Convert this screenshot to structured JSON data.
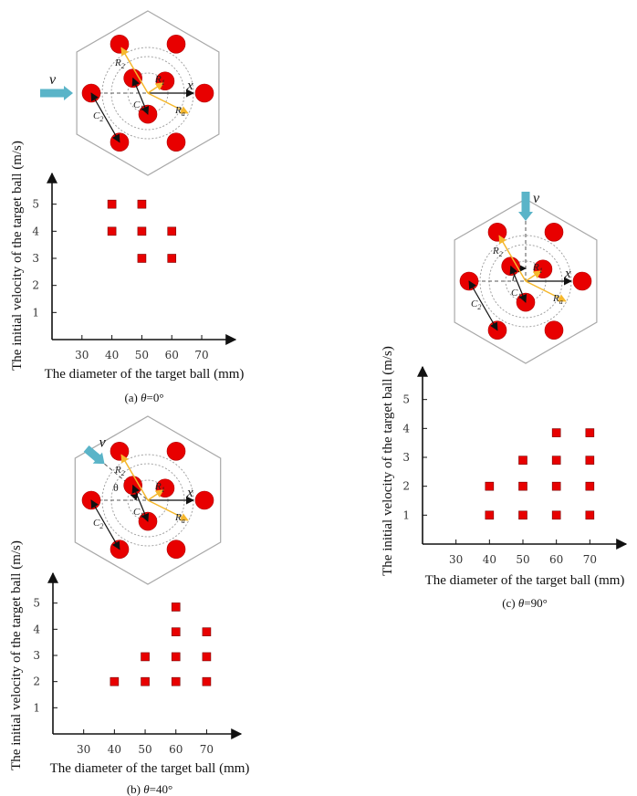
{
  "chart_data": [
    {
      "id": "a",
      "type": "scatter",
      "title": "",
      "caption_prefix": "(a)",
      "caption_theta": "θ=0°",
      "xlabel": "The diameter of the target ball (mm)",
      "ylabel": "The initial velocity of the target ball (m/s)",
      "x_ticks": [
        30,
        40,
        50,
        60,
        70
      ],
      "y_ticks": [
        1,
        2,
        3,
        4,
        5
      ],
      "xlim": [
        20,
        77
      ],
      "ylim": [
        0,
        6
      ],
      "grid": false,
      "marker": "square",
      "marker_color": "#e80000",
      "points": [
        {
          "x": 40,
          "y": 5
        },
        {
          "x": 50,
          "y": 5
        },
        {
          "x": 40,
          "y": 4
        },
        {
          "x": 50,
          "y": 4
        },
        {
          "x": 60,
          "y": 4
        },
        {
          "x": 50,
          "y": 3
        },
        {
          "x": 60,
          "y": 3
        }
      ],
      "diagram": {
        "velocity_label": "v",
        "x_axis_label": "x",
        "labels": [
          "R2",
          "R1",
          "Ra",
          "C1",
          "C2"
        ],
        "theta_label": "",
        "impact_angle_deg": 0
      }
    },
    {
      "id": "b",
      "type": "scatter",
      "title": "",
      "caption_prefix": "(b)",
      "caption_theta": "θ=40°",
      "xlabel": "The diameter of the target ball (mm)",
      "ylabel": "The initial velocity of the target ball (m/s)",
      "x_ticks": [
        30,
        40,
        50,
        60,
        70
      ],
      "y_ticks": [
        1,
        2,
        3,
        4,
        5
      ],
      "xlim": [
        20,
        77
      ],
      "ylim": [
        0,
        6
      ],
      "grid": false,
      "marker": "square",
      "marker_color": "#e80000",
      "points": [
        {
          "x": 60,
          "y": 4.85
        },
        {
          "x": 60,
          "y": 3.9
        },
        {
          "x": 70,
          "y": 3.9
        },
        {
          "x": 50,
          "y": 2.95
        },
        {
          "x": 60,
          "y": 2.95
        },
        {
          "x": 70,
          "y": 2.95
        },
        {
          "x": 40,
          "y": 2
        },
        {
          "x": 50,
          "y": 2
        },
        {
          "x": 60,
          "y": 2
        },
        {
          "x": 70,
          "y": 2
        }
      ],
      "diagram": {
        "velocity_label": "v",
        "x_axis_label": "x",
        "labels": [
          "R2",
          "R1",
          "Ra",
          "C1",
          "C2"
        ],
        "theta_label": "θ",
        "impact_angle_deg": 40
      }
    },
    {
      "id": "c",
      "type": "scatter",
      "title": "",
      "caption_prefix": "(c)",
      "caption_theta": "θ=90°",
      "xlabel": "The diameter of the target ball (mm)",
      "ylabel": "The initial velocity of the target ball (m/s)",
      "x_ticks": [
        30,
        40,
        50,
        60,
        70
      ],
      "y_ticks": [
        1,
        2,
        3,
        4,
        5
      ],
      "xlim": [
        20,
        77
      ],
      "ylim": [
        0,
        6
      ],
      "grid": false,
      "marker": "square",
      "marker_color": "#e80000",
      "points": [
        {
          "x": 60,
          "y": 3.85
        },
        {
          "x": 70,
          "y": 3.85
        },
        {
          "x": 50,
          "y": 2.9
        },
        {
          "x": 60,
          "y": 2.9
        },
        {
          "x": 70,
          "y": 2.9
        },
        {
          "x": 40,
          "y": 2
        },
        {
          "x": 50,
          "y": 2
        },
        {
          "x": 60,
          "y": 2
        },
        {
          "x": 70,
          "y": 2
        },
        {
          "x": 40,
          "y": 1
        },
        {
          "x": 50,
          "y": 1
        },
        {
          "x": 60,
          "y": 1
        },
        {
          "x": 70,
          "y": 1
        }
      ],
      "diagram": {
        "velocity_label": "v",
        "x_axis_label": "x",
        "labels": [
          "R2",
          "R1",
          "Ra",
          "C1",
          "C2"
        ],
        "theta_label": "θ",
        "impact_angle_deg": 90
      }
    }
  ],
  "colors": {
    "ball": "#e80000",
    "ball_edge": "#b00000",
    "velocity_arrow": "#5ab4c8",
    "radius_arrow": "#f5b82e",
    "hexagon": "#a8a8a8",
    "dashed_circle": "#9a9a9a",
    "axis": "#111111"
  }
}
